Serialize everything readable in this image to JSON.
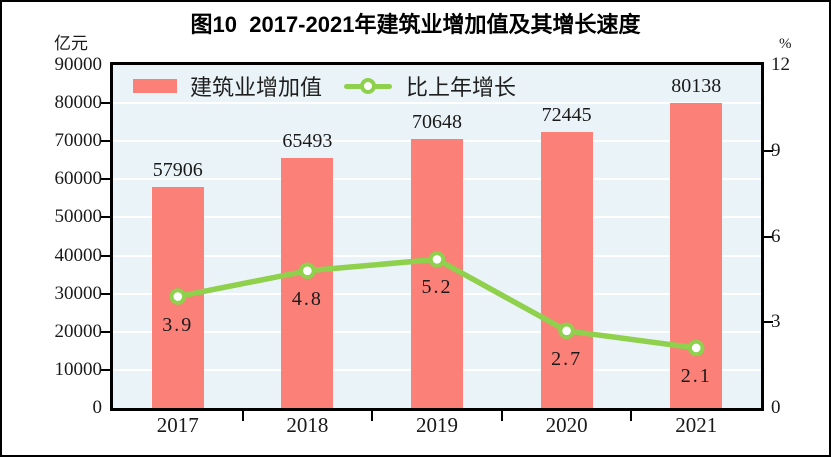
{
  "figure": {
    "title": "图10  2017-2021年建筑业增加值及其增长速度",
    "left_axis_unit": "亿元",
    "right_axis_unit": "%"
  },
  "legend": [
    {
      "label": "建筑业增加值",
      "type": "bar"
    },
    {
      "label": "比上年增长",
      "type": "line"
    }
  ],
  "colors": {
    "bar": "#fa8078",
    "line": "#8fd04d",
    "marker_fill": "#ffffff",
    "plot_background": "#eaf4f8",
    "gridline": "#ffffff",
    "axis": "#000000",
    "text": "#1a1a1a"
  },
  "chart_data": {
    "type": "bar",
    "subtype": "bar+line combo, dual axis",
    "title": "图10  2017-2021年建筑业增加值及其增长速度",
    "categories": [
      "2017",
      "2018",
      "2019",
      "2020",
      "2021"
    ],
    "series": [
      {
        "name": "建筑业增加值",
        "type": "bar",
        "axis": "left",
        "unit": "亿元",
        "values": [
          57906,
          65493,
          70648,
          72445,
          80138
        ],
        "labels": [
          "57906",
          "65493",
          "70648",
          "72445",
          "80138"
        ]
      },
      {
        "name": "比上年增长",
        "type": "line",
        "axis": "right",
        "unit": "%",
        "values": [
          3.9,
          4.8,
          5.2,
          2.7,
          2.1
        ],
        "labels": [
          "3.9",
          "4.8",
          "5.2",
          "2.7",
          "2.1"
        ]
      }
    ],
    "left_axis": {
      "unit": "亿元",
      "min": 0,
      "max": 90000,
      "step": 10000,
      "tick_labels": [
        "90000",
        "80000",
        "70000",
        "60000",
        "50000",
        "40000",
        "30000",
        "20000",
        "10000",
        "0"
      ]
    },
    "right_axis": {
      "unit": "%",
      "min": 0,
      "max": 12,
      "step": 3,
      "tick_labels": [
        "12",
        "9",
        "6",
        "3",
        "0"
      ]
    },
    "grid": true,
    "legend_position": "top-left inside plot"
  }
}
